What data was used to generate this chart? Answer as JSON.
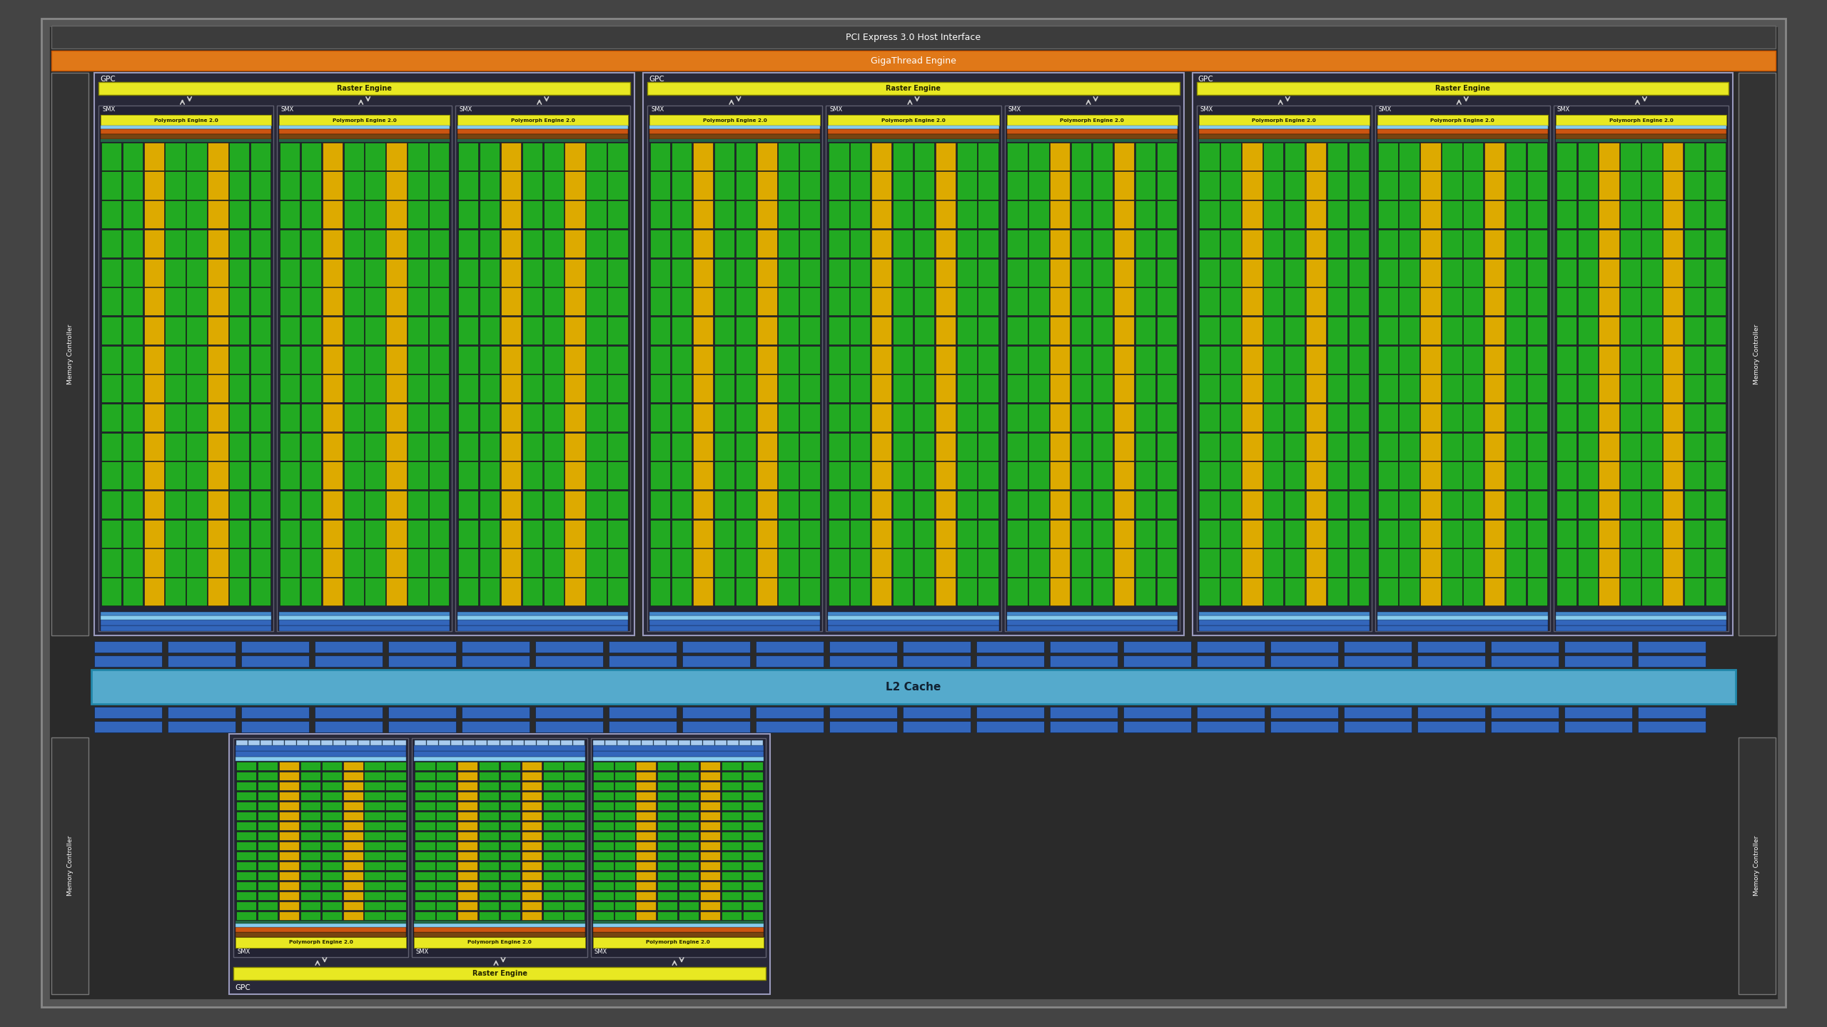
{
  "bg_color": "#111111",
  "chip_bg": "#2a2a2a",
  "chip_border": "#555555",
  "pci_bg": "#3c3c3c",
  "pci_text": "PCI Express 3.0 Host Interface",
  "pci_text_color": "#ffffff",
  "gigathread_bg": "#e07818",
  "gigathread_text": "GigaThread Engine",
  "gigathread_text_color": "#ffffff",
  "raster_bg": "#e8e822",
  "raster_text": "Raster Engine",
  "raster_text_color": "#222200",
  "polymorph_bg": "#e8e822",
  "polymorph_text": "Polymorph Engine 2.0",
  "polymorph_text_color": "#222200",
  "smx_bg": "#232333",
  "smx_border": "#606070",
  "gpc_bg": "#282838",
  "gpc_border": "#9999bb",
  "l2_bg": "#55aacc",
  "l2_text": "L2 Cache",
  "l2_text_color": "#112233",
  "mc_bg": "#333333",
  "mc_border": "#777777",
  "mc_text": "Memory Controller",
  "mc_text_color": "#ffffff",
  "cuda_green": "#22aa22",
  "cuda_yellow": "#ddaa00",
  "cuda_dark_bg": "#1a1a2a",
  "blue_bar_color": "#4488cc",
  "light_blue_color": "#88ccee",
  "blue_block_color": "#3366bb",
  "orange_bar_color": "#cc5511",
  "brown_bar_color": "#774411",
  "teal_bar_color": "#226644"
}
